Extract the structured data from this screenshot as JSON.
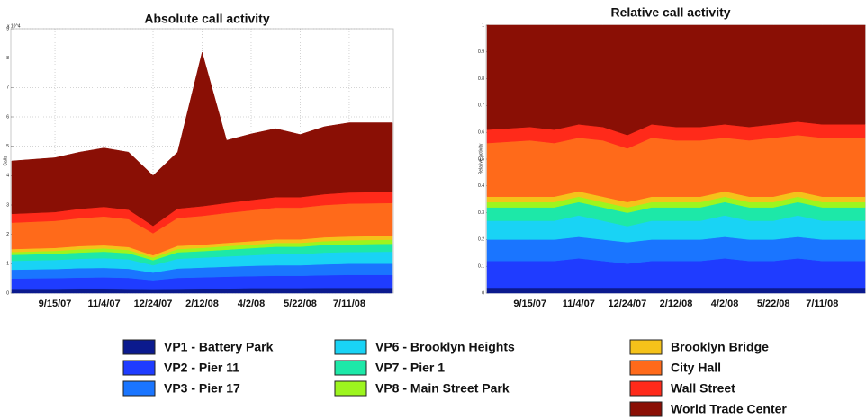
{
  "chart_data": [
    {
      "type": "stacked_area",
      "title": "Absolute call activity",
      "y_label": "Calls",
      "y_multiplier": "x 10^4",
      "categories": [
        null,
        "9/15/07",
        null,
        "11/4/07",
        null,
        "12/24/07",
        null,
        "2/12/08",
        null,
        "4/2/08",
        null,
        "5/22/08",
        null,
        "7/11/08",
        null
      ],
      "ylim": [
        0,
        9
      ],
      "yticks": [
        0,
        1,
        2,
        3,
        4,
        5,
        6,
        7,
        8,
        9
      ],
      "grid": true,
      "series": [
        {
          "name": "VP1 - Battery Park",
          "color": "#0b1a8e",
          "values": [
            0.15,
            0.15,
            0.16,
            0.16,
            0.15,
            0.14,
            0.15,
            0.16,
            0.16,
            0.17,
            0.17,
            0.17,
            0.18,
            0.18,
            0.18
          ]
        },
        {
          "name": "VP2 - Pier 11",
          "color": "#1f3cff",
          "values": [
            0.35,
            0.36,
            0.37,
            0.38,
            0.37,
            0.3,
            0.37,
            0.38,
            0.4,
            0.41,
            0.42,
            0.42,
            0.43,
            0.44,
            0.44
          ]
        },
        {
          "name": "VP3 - Pier 17",
          "color": "#1a75ff",
          "values": [
            0.3,
            0.31,
            0.32,
            0.32,
            0.31,
            0.26,
            0.32,
            0.33,
            0.34,
            0.35,
            0.36,
            0.36,
            0.37,
            0.38,
            0.38
          ]
        },
        {
          "name": "VP6 - Brooklyn Heights",
          "color": "#19d3f5",
          "values": [
            0.3,
            0.31,
            0.32,
            0.33,
            0.32,
            0.25,
            0.33,
            0.34,
            0.35,
            0.36,
            0.38,
            0.38,
            0.4,
            0.4,
            0.41
          ]
        },
        {
          "name": "VP7 - Pier 1",
          "color": "#1de8a8",
          "values": [
            0.2,
            0.21,
            0.21,
            0.22,
            0.21,
            0.17,
            0.22,
            0.22,
            0.23,
            0.24,
            0.25,
            0.25,
            0.26,
            0.26,
            0.27
          ]
        },
        {
          "name": "VP8 - Main Street Park",
          "color": "#9df51e",
          "values": [
            0.1,
            0.1,
            0.11,
            0.11,
            0.11,
            0.09,
            0.11,
            0.11,
            0.12,
            0.12,
            0.13,
            0.13,
            0.13,
            0.14,
            0.14
          ]
        },
        {
          "name": "Brooklyn Bridge",
          "color": "#f5c21a",
          "values": [
            0.1,
            0.1,
            0.11,
            0.11,
            0.1,
            0.08,
            0.11,
            0.11,
            0.11,
            0.12,
            0.12,
            0.12,
            0.13,
            0.13,
            0.13
          ]
        },
        {
          "name": "City Hall",
          "color": "#ff6a1a",
          "values": [
            0.9,
            0.92,
            0.95,
            0.98,
            0.95,
            0.75,
            0.95,
            0.98,
            1.02,
            1.05,
            1.08,
            1.08,
            1.1,
            1.12,
            1.12
          ]
        },
        {
          "name": "Wall Street",
          "color": "#ff2a1a",
          "values": [
            0.3,
            0.3,
            0.32,
            0.33,
            0.32,
            0.25,
            0.32,
            0.33,
            0.34,
            0.35,
            0.36,
            0.36,
            0.37,
            0.38,
            0.38
          ]
        },
        {
          "name": "World Trade Center",
          "color": "#8a0f05",
          "values": [
            1.8,
            1.85,
            1.93,
            2.0,
            1.96,
            1.71,
            1.92,
            5.24,
            2.13,
            2.25,
            2.33,
            2.13,
            2.3,
            2.37,
            2.35
          ]
        }
      ]
    },
    {
      "type": "stacked_area",
      "title": "Relative call activity",
      "y_label": "Relative activity",
      "categories": [
        null,
        "9/15/07",
        null,
        "11/4/07",
        null,
        "12/24/07",
        null,
        "2/12/08",
        null,
        "4/2/08",
        null,
        "5/22/08",
        null,
        "7/11/08",
        null
      ],
      "ylim": [
        0,
        1
      ],
      "yticks": [
        0,
        0.1,
        0.2,
        0.3,
        0.4,
        0.5,
        0.6,
        0.7,
        0.8,
        0.9,
        1
      ],
      "grid": false,
      "series": [
        {
          "name": "VP1 - Battery Park",
          "color": "#0b1a8e",
          "values": [
            0.02,
            0.02,
            0.02,
            0.02,
            0.02,
            0.02,
            0.02,
            0.02,
            0.02,
            0.02,
            0.02,
            0.02,
            0.02,
            0.02,
            0.02
          ]
        },
        {
          "name": "VP2 - Pier 11",
          "color": "#1f3cff",
          "values": [
            0.1,
            0.1,
            0.1,
            0.11,
            0.1,
            0.09,
            0.1,
            0.1,
            0.1,
            0.11,
            0.1,
            0.1,
            0.11,
            0.1,
            0.1
          ]
        },
        {
          "name": "VP3 - Pier 17",
          "color": "#1a75ff",
          "values": [
            0.08,
            0.08,
            0.08,
            0.08,
            0.08,
            0.08,
            0.08,
            0.08,
            0.08,
            0.08,
            0.08,
            0.08,
            0.08,
            0.08,
            0.08
          ]
        },
        {
          "name": "VP6 - Brooklyn Heights",
          "color": "#19d3f5",
          "values": [
            0.07,
            0.07,
            0.07,
            0.08,
            0.07,
            0.06,
            0.07,
            0.07,
            0.07,
            0.08,
            0.07,
            0.07,
            0.08,
            0.07,
            0.07
          ]
        },
        {
          "name": "VP7 - Pier 1",
          "color": "#1de8a8",
          "values": [
            0.05,
            0.05,
            0.05,
            0.05,
            0.05,
            0.05,
            0.05,
            0.05,
            0.05,
            0.05,
            0.05,
            0.05,
            0.05,
            0.05,
            0.05
          ]
        },
        {
          "name": "VP8 - Main Street Park",
          "color": "#9df51e",
          "values": [
            0.02,
            0.02,
            0.02,
            0.02,
            0.02,
            0.02,
            0.02,
            0.02,
            0.02,
            0.02,
            0.02,
            0.02,
            0.02,
            0.02,
            0.02
          ]
        },
        {
          "name": "Brooklyn Bridge",
          "color": "#f5c21a",
          "values": [
            0.02,
            0.02,
            0.02,
            0.02,
            0.02,
            0.02,
            0.02,
            0.02,
            0.02,
            0.02,
            0.02,
            0.02,
            0.02,
            0.02,
            0.02
          ]
        },
        {
          "name": "City Hall",
          "color": "#ff6a1a",
          "values": [
            0.2,
            0.21,
            0.2,
            0.2,
            0.21,
            0.2,
            0.22,
            0.21,
            0.21,
            0.2,
            0.21,
            0.22,
            0.21,
            0.22,
            0.22
          ]
        },
        {
          "name": "Wall Street",
          "color": "#ff2a1a",
          "values": [
            0.05,
            0.05,
            0.05,
            0.05,
            0.05,
            0.05,
            0.05,
            0.05,
            0.05,
            0.05,
            0.05,
            0.05,
            0.05,
            0.05,
            0.05
          ]
        },
        {
          "name": "World Trade Center",
          "color": "#8a0f05",
          "values": [
            0.39,
            0.38,
            0.39,
            0.37,
            0.38,
            0.41,
            0.37,
            0.38,
            0.38,
            0.37,
            0.38,
            0.37,
            0.36,
            0.37,
            0.37
          ]
        }
      ]
    }
  ]
}
